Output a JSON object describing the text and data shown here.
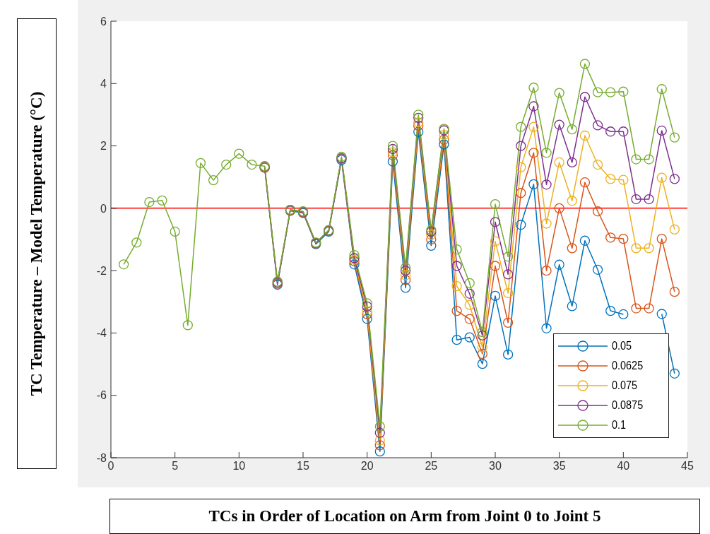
{
  "chart_data": {
    "type": "line",
    "xlabel": "TCs in Order of Location on Arm from Joint 0 to Joint 5",
    "ylabel": "TC Temperature – Model Temperature (°C)",
    "x": [
      1,
      2,
      3,
      4,
      5,
      6,
      7,
      8,
      9,
      10,
      11,
      12,
      13,
      14,
      15,
      16,
      17,
      18,
      19,
      20,
      21,
      22,
      23,
      24,
      25,
      26,
      27,
      28,
      29,
      30,
      31,
      32,
      33,
      34,
      35,
      36,
      37,
      38,
      39,
      40,
      41,
      42,
      43,
      44
    ],
    "xlim": [
      0,
      45
    ],
    "xticks": [
      0,
      5,
      10,
      15,
      20,
      25,
      30,
      35,
      40,
      45
    ],
    "ylim": [
      -8,
      6
    ],
    "yticks": [
      -8,
      -6,
      -4,
      -2,
      0,
      2,
      4,
      6
    ],
    "grid": false,
    "legend": "bottom right",
    "marker": "circle",
    "line_style": "solid",
    "ref_lines": [
      {
        "axis": "y",
        "value": 0,
        "color": "#ff4040"
      }
    ],
    "series": [
      {
        "name": "0.05",
        "color": "#0072bd",
        "values": [
          null,
          null,
          null,
          null,
          null,
          null,
          null,
          null,
          null,
          null,
          null,
          1.3,
          -2.45,
          -0.08,
          -0.15,
          -1.15,
          -0.75,
          1.55,
          -1.8,
          -3.55,
          -7.8,
          1.5,
          -2.55,
          2.45,
          -1.2,
          2.05,
          -4.22,
          -4.14,
          -4.99,
          -2.81,
          -4.69,
          -0.53,
          0.77,
          -3.85,
          -1.81,
          -3.14,
          -1.04,
          -1.97,
          -3.29,
          -3.4,
          null,
          null,
          -3.39,
          -5.3
        ]
      },
      {
        "name": "0.0625",
        "color": "#d95319",
        "values": [
          null,
          null,
          null,
          null,
          null,
          null,
          null,
          null,
          null,
          null,
          null,
          1.3,
          -2.42,
          -0.07,
          -0.13,
          -1.13,
          -0.73,
          1.6,
          -1.7,
          -3.4,
          -7.6,
          1.7,
          -2.3,
          2.65,
          -1.0,
          2.2,
          -3.29,
          -3.55,
          -4.67,
          -1.85,
          -3.67,
          0.49,
          1.78,
          -2.0,
          0.0,
          -1.28,
          0.83,
          -0.1,
          -0.94,
          -0.98,
          -3.21,
          -3.21,
          -0.98,
          -2.68
        ]
      },
      {
        "name": "0.075",
        "color": "#edb120",
        "values": [
          null,
          null,
          null,
          null,
          null,
          null,
          null,
          null,
          null,
          null,
          null,
          null,
          null,
          null,
          null,
          null,
          null,
          1.6,
          -1.65,
          -3.3,
          -7.45,
          1.8,
          -2.15,
          2.75,
          -0.85,
          2.35,
          -2.5,
          -3.1,
          -4.46,
          -1.06,
          -2.72,
          1.32,
          2.61,
          -0.49,
          1.47,
          0.24,
          2.33,
          1.4,
          0.94,
          0.91,
          -1.28,
          -1.28,
          0.98,
          -0.68
        ]
      },
      {
        "name": "0.0875",
        "color": "#7e2f8e",
        "values": [
          null,
          null,
          null,
          null,
          null,
          null,
          null,
          null,
          null,
          null,
          null,
          1.34,
          -2.38,
          -0.05,
          -0.11,
          -1.11,
          -0.71,
          1.6,
          -1.6,
          -3.15,
          -7.2,
          1.9,
          -2.0,
          2.9,
          -0.75,
          2.5,
          -1.85,
          -2.74,
          -4.08,
          -0.44,
          -2.12,
          2.0,
          3.27,
          0.76,
          2.68,
          1.47,
          3.57,
          2.66,
          2.46,
          2.46,
          0.29,
          0.29,
          2.49,
          0.94
        ]
      },
      {
        "name": "0.1",
        "color": "#77ac30",
        "values": [
          -1.8,
          -1.1,
          0.2,
          0.25,
          -0.75,
          -3.75,
          1.45,
          0.9,
          1.4,
          1.75,
          1.4,
          1.35,
          -2.35,
          -0.05,
          -0.1,
          -1.1,
          -0.7,
          1.65,
          -1.5,
          -3.05,
          -7.0,
          2.0,
          -1.9,
          3.0,
          -0.7,
          2.55,
          -1.32,
          -2.4,
          -3.97,
          0.13,
          -1.55,
          2.61,
          3.87,
          1.78,
          3.7,
          2.53,
          4.63,
          3.72,
          3.72,
          3.74,
          1.57,
          1.57,
          3.82,
          2.27
        ]
      }
    ]
  }
}
